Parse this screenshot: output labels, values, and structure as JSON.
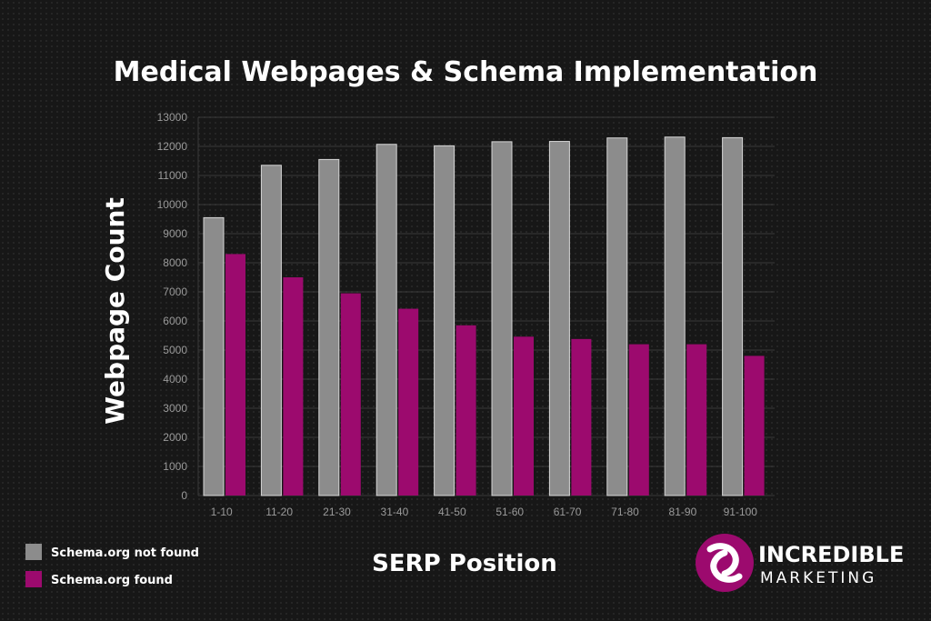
{
  "chart_data": {
    "type": "bar",
    "title": "Medical Webpages & Schema Implementation",
    "xlabel": "SERP Position",
    "ylabel": "Webpage Count",
    "categories": [
      "1-10",
      "11-20",
      "21-30",
      "31-40",
      "41-50",
      "51-60",
      "61-70",
      "71-80",
      "81-90",
      "91-100"
    ],
    "series": [
      {
        "name": "Schema.org not found",
        "color": "#8c8c8c",
        "values": [
          9550,
          11350,
          11550,
          12070,
          12020,
          12160,
          12170,
          12290,
          12320,
          12300
        ]
      },
      {
        "name": "Schema.org found",
        "color": "#9c0a6e",
        "values": [
          8300,
          7500,
          6950,
          6420,
          5850,
          5460,
          5380,
          5200,
          5200,
          4800
        ]
      }
    ],
    "ylim": [
      0,
      13000
    ],
    "yticks": [
      0,
      1000,
      2000,
      3000,
      4000,
      5000,
      6000,
      7000,
      8000,
      9000,
      10000,
      11000,
      12000,
      13000
    ],
    "grid": true,
    "legend_position": "bottom-left"
  },
  "logo": {
    "line1": "INCREDIBLE",
    "line2": "MARKETING",
    "accent_color": "#9c0a6e",
    "icon": "incredible-marketing-logo-icon"
  }
}
